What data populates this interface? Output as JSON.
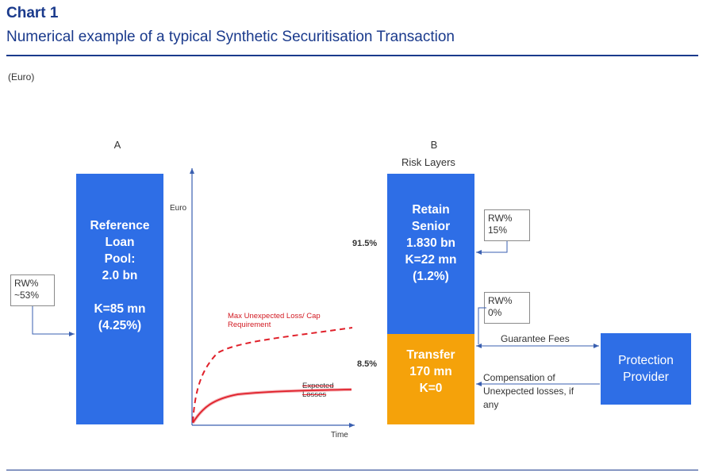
{
  "header": {
    "chart_label": "Chart 1",
    "title": "Numerical example of a typical Synthetic Securitisation Transaction",
    "unit_note": "(Euro)"
  },
  "panel_a": {
    "heading": "A",
    "box_text": "Reference\nLoan\nPool:\n2.0 bn\n\nK=85 mn\n(4.25%)",
    "rw_callout": "RW%\n~53%"
  },
  "graph": {
    "y_axis_label": "Euro",
    "x_axis_label": "Time",
    "max_loss_label": "Max Unexpected Loss/ Cap\nRequirement",
    "expected_label": "Expected\nLosses"
  },
  "panel_b": {
    "heading": "B",
    "subheading": "Risk Layers",
    "senior_pct": "91.5%",
    "senior_text": "Retain\nSenior\n1.830 bn\nK=22 mn\n(1.2%)",
    "transfer_pct": "8.5%",
    "transfer_text": "Transfer\n170 mn\nK=0",
    "rw_senior": "RW%\n15%",
    "rw_transfer": "RW%\n0%",
    "guarantee_fees": "Guarantee Fees",
    "compensation": "Compensation of\nUnexpected losses, if\nany",
    "protection_provider": "Protection\nProvider"
  },
  "colors": {
    "title_blue": "#1a3a8c",
    "box_blue": "#2e6ee6",
    "box_orange": "#f5a20a",
    "curve_red": "#e0202a"
  }
}
